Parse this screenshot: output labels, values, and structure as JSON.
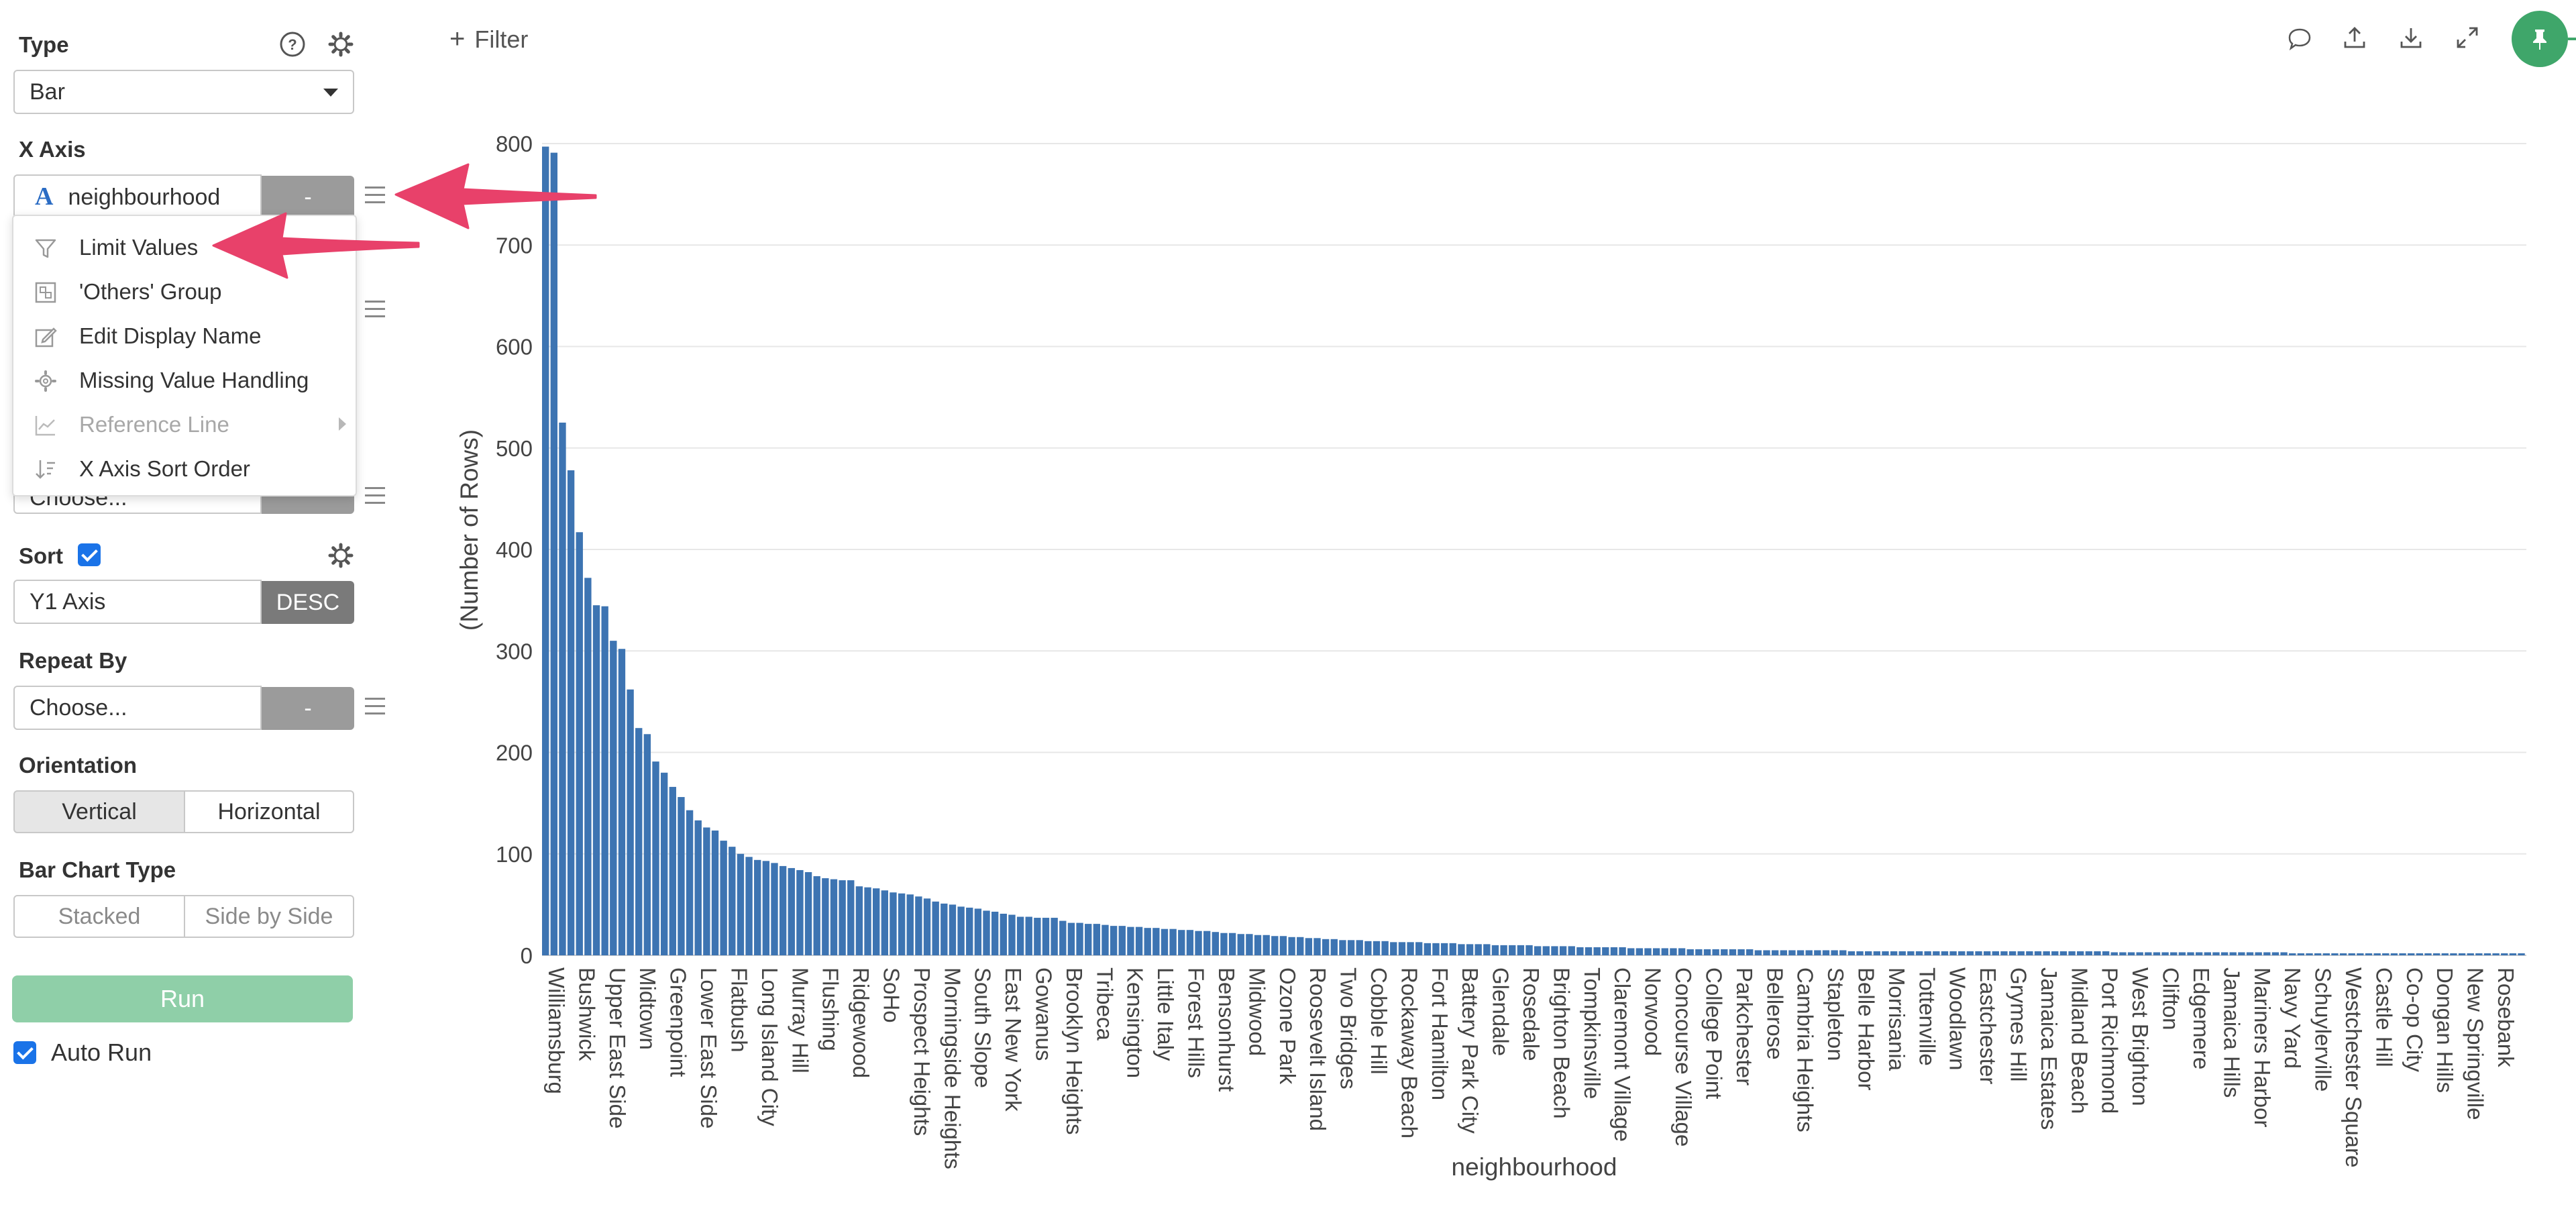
{
  "panel": {
    "type_label": "Type",
    "type_value": "Bar",
    "xaxis_label": "X Axis",
    "xaxis_value": "neighbourhood",
    "xaxis_icon": "text-type-icon",
    "xaxis_button": "-",
    "color_button": "-",
    "choose_placeholder": "Choose...",
    "sort_label": "Sort",
    "sort_checked": true,
    "sort_field": "Y1 Axis",
    "sort_order": "DESC",
    "repeat_label": "Repeat By",
    "repeat_value": "Choose...",
    "repeat_button": "-",
    "orientation_label": "Orientation",
    "orientation_options": [
      "Vertical",
      "Horizontal"
    ],
    "orientation_selected": "Vertical",
    "bar_type_label": "Bar Chart Type",
    "bar_type_options": [
      "Stacked",
      "Side by Side"
    ],
    "run_label": "Run",
    "auto_run_label": "Auto Run",
    "auto_run_checked": true
  },
  "menu": {
    "items": [
      {
        "label": "Limit Values",
        "icon": "filter-icon",
        "enabled": true
      },
      {
        "label": "'Others' Group",
        "icon": "group-icon",
        "enabled": true
      },
      {
        "label": "Edit Display Name",
        "icon": "edit-icon",
        "enabled": true
      },
      {
        "label": "Missing Value Handling",
        "icon": "gear-icon",
        "enabled": true
      },
      {
        "label": "Reference Line",
        "icon": "chart-line-icon",
        "enabled": false
      },
      {
        "label": "X Axis Sort Order",
        "icon": "sort-icon",
        "enabled": true
      }
    ]
  },
  "toolbar": {
    "filter_label": "Filter",
    "icons": [
      "comment-icon",
      "upload-icon",
      "download-icon",
      "expand-icon",
      "pin-icon"
    ]
  },
  "annotations": {
    "arrow_color": "#e8416a"
  },
  "chart_data": {
    "type": "bar",
    "title": "",
    "xlabel": "neighbourhood",
    "ylabel": "(Number of Rows)",
    "ylim": [
      0,
      800
    ],
    "yticks": [
      0,
      100,
      200,
      300,
      400,
      500,
      600,
      700,
      800
    ],
    "grid": true,
    "bar_color": "#3d74b2",
    "visible_category_labels": [
      "Williamsburg",
      "Bushwick",
      "Upper East Side",
      "Midtown",
      "Greenpoint",
      "Lower East Side",
      "Flatbush",
      "Long Island City",
      "Murray Hill",
      "Flushing",
      "Ridgewood",
      "SoHo",
      "Prospect Heights",
      "Morningside Heights",
      "South Slope",
      "East New York",
      "Gowanus",
      "Brooklyn Heights",
      "Tribeca",
      "Kensington",
      "Little Italy",
      "Forest Hills",
      "Bensonhurst",
      "Midwood",
      "Ozone Park",
      "Roosevelt Island",
      "Two Bridges",
      "Cobble Hill",
      "Rockaway Beach",
      "Fort Hamilton",
      "Battery Park City",
      "Glendale",
      "Rosedale",
      "Brighton Beach",
      "Tompkinsville",
      "Claremont Village",
      "Norwood",
      "Concourse Village",
      "College Point",
      "Parkchester",
      "Bellerose",
      "Cambria Heights",
      "Stapleton",
      "Belle Harbor",
      "Morrisania",
      "Tottenville",
      "Woodlawn",
      "Eastchester",
      "Grymes Hill",
      "Jamaica Estates",
      "Midland Beach",
      "Port Richmond",
      "West Brighton",
      "Clifton",
      "Edgemere",
      "Jamaica Hills",
      "Mariners Harbor",
      "Navy Yard",
      "Schuylerville",
      "Westchester Square",
      "Castle Hill",
      "Co-op City",
      "Dongan Hills",
      "New Springville",
      "Rosebank"
    ],
    "values": [
      797,
      791,
      525,
      478,
      417,
      372,
      345,
      344,
      310,
      302,
      262,
      224,
      218,
      191,
      180,
      166,
      156,
      143,
      133,
      126,
      123,
      113,
      107,
      100,
      97,
      94,
      93,
      91,
      88,
      86,
      84,
      82,
      78,
      76,
      75,
      74,
      74,
      68,
      67,
      66,
      64,
      62,
      61,
      60,
      58,
      56,
      53,
      51,
      50,
      48,
      47,
      46,
      44,
      43,
      41,
      40,
      38,
      38,
      37,
      37,
      37,
      34,
      32,
      32,
      31,
      31,
      30,
      29,
      29,
      28,
      28,
      27,
      27,
      26,
      26,
      25,
      25,
      24,
      24,
      23,
      22,
      22,
      21,
      21,
      20,
      20,
      19,
      19,
      18,
      18,
      17,
      17,
      16,
      16,
      15,
      15,
      15,
      14,
      14,
      14,
      13,
      13,
      13,
      13,
      12,
      12,
      12,
      12,
      11,
      11,
      11,
      11,
      10,
      10,
      10,
      10,
      10,
      9,
      9,
      9,
      9,
      9,
      8,
      8,
      8,
      8,
      8,
      8,
      7,
      7,
      7,
      7,
      7,
      7,
      7,
      6,
      6,
      6,
      6,
      6,
      6,
      6,
      6,
      5,
      5,
      5,
      5,
      5,
      5,
      5,
      5,
      5,
      5,
      5,
      4,
      4,
      4,
      4,
      4,
      4,
      4,
      4,
      4,
      4,
      4,
      4,
      4,
      4,
      4,
      4,
      4,
      4,
      4,
      4,
      4,
      4,
      4,
      4,
      4,
      4,
      4,
      4,
      4,
      4,
      4,
      3,
      3,
      3,
      3,
      3,
      3,
      3,
      3,
      3,
      3,
      3,
      3,
      3,
      3,
      3,
      3,
      3,
      3,
      3,
      3,
      3,
      2,
      2,
      2,
      2,
      2,
      2,
      2,
      2,
      2,
      2,
      2,
      2,
      2,
      2,
      2,
      2,
      2,
      2,
      2,
      2,
      2,
      2,
      2,
      2,
      2,
      2,
      2,
      2
    ]
  }
}
